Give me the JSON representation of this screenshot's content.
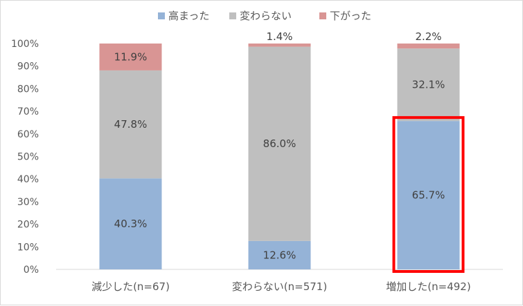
{
  "chart_data": {
    "type": "bar",
    "stacked": true,
    "percent": true,
    "categories": [
      "減少した(n=67)",
      "変わらない(n=571)",
      "増加した(n=492)"
    ],
    "series": [
      {
        "name": "高まった",
        "color": "#95b3d7",
        "values": [
          40.3,
          12.6,
          65.7
        ],
        "labels": [
          "40.3%",
          "12.6%",
          "65.7%"
        ]
      },
      {
        "name": "変わらない",
        "color": "#bfbfbf",
        "values": [
          47.8,
          86.0,
          32.1
        ],
        "labels": [
          "47.8%",
          "86.0%",
          "32.1%"
        ]
      },
      {
        "name": "下がった",
        "color": "#d99594",
        "values": [
          11.9,
          1.4,
          2.2
        ],
        "labels": [
          "11.9%",
          "1.4%",
          "2.2%"
        ]
      }
    ],
    "y_ticks": [
      "0%",
      "10%",
      "20%",
      "30%",
      "40%",
      "50%",
      "60%",
      "70%",
      "80%",
      "90%",
      "100%"
    ],
    "ylim": [
      0,
      100
    ],
    "legend": "top",
    "highlight": {
      "category_index": 2,
      "series_index": 0,
      "color": "#ff0000"
    }
  }
}
